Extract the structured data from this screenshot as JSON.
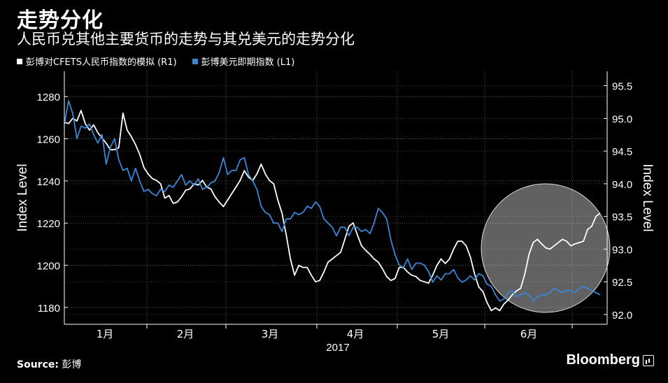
{
  "header": {
    "title": "走势分化",
    "subtitle": "人民币兑其他主要货币的走势与其兑美元的走势分化"
  },
  "legend": [
    {
      "label": "彭博对CFETS人民币指数的模拟 (R1)",
      "color": "#ffffff"
    },
    {
      "label": "彭博美元即期指数 (L1)",
      "color": "#3a86d4"
    }
  ],
  "footer": {
    "source_label": "Source:",
    "source_value": "彭博",
    "brand": "Bloomberg"
  },
  "chart_data": {
    "type": "line",
    "left_axis": {
      "label": "Index Level",
      "range": [
        1172,
        1292
      ],
      "ticks": [
        "1180",
        "1200",
        "1220",
        "1240",
        "1260",
        "1280"
      ]
    },
    "right_axis": {
      "label": "Index Level",
      "range": [
        91.85,
        95.72
      ],
      "ticks": [
        "92.0",
        "92.5",
        "93.0",
        "93.5",
        "94.0",
        "94.5",
        "95.0",
        "95.5"
      ]
    },
    "x_axis": {
      "year_label": "2017",
      "month_labels": [
        "1月",
        "2月",
        "3月",
        "4月",
        "5月",
        "6月"
      ]
    },
    "grid": true,
    "highlight": "circle around late May–June",
    "series": [
      {
        "name": "彭博对CFETS人民币指数的模拟 (R1)",
        "axis": "right",
        "color": "#ffffff",
        "x": [
          0,
          1,
          2,
          3,
          4,
          5,
          6,
          7,
          8,
          9,
          10,
          11,
          12,
          13,
          14,
          15,
          16,
          17,
          18,
          19,
          20,
          21,
          22,
          23,
          24,
          25,
          26,
          27,
          28,
          29,
          30,
          31,
          32,
          33,
          34,
          35,
          36,
          37,
          38,
          39,
          40,
          41,
          42,
          43,
          44,
          45,
          46,
          47,
          48,
          49,
          50,
          51,
          52,
          53,
          54,
          55,
          56,
          57,
          58,
          59,
          60,
          61,
          62,
          63,
          64,
          65,
          66,
          67,
          68,
          69,
          70,
          71,
          72,
          73,
          74,
          75,
          76,
          77,
          78,
          79,
          80,
          81,
          82,
          83,
          84,
          85,
          86,
          87,
          88,
          89,
          90,
          91,
          92,
          93,
          94,
          95,
          96,
          97,
          98,
          99,
          100,
          101,
          102,
          103,
          104,
          105,
          106,
          107,
          108,
          109,
          110,
          111,
          112,
          113,
          114,
          115,
          116,
          117,
          118,
          119,
          120,
          121,
          122,
          123,
          124,
          125,
          126,
          127,
          128
        ],
        "values": [
          94.94,
          94.92,
          95.0,
          94.96,
          95.12,
          94.92,
          94.82,
          94.9,
          94.78,
          94.7,
          94.62,
          94.52,
          94.52,
          94.55,
          95.08,
          94.82,
          94.72,
          94.6,
          94.45,
          94.25,
          94.15,
          94.08,
          94.05,
          94.0,
          93.78,
          93.82,
          93.7,
          93.72,
          93.8,
          93.9,
          93.92,
          94.0,
          93.98,
          94.05,
          93.95,
          93.92,
          93.8,
          93.72,
          93.65,
          93.75,
          93.85,
          93.95,
          94.05,
          94.2,
          94.1,
          94.05,
          94.15,
          94.3,
          94.15,
          94.05,
          94.0,
          93.75,
          93.55,
          93.22,
          92.85,
          92.6,
          92.75,
          92.72,
          92.72,
          92.6,
          92.5,
          92.52,
          92.65,
          92.8,
          92.85,
          92.9,
          92.95,
          93.15,
          93.35,
          93.4,
          93.22,
          93.05,
          92.98,
          92.92,
          92.85,
          92.8,
          92.7,
          92.58,
          92.52,
          92.55,
          92.72,
          92.72,
          92.65,
          92.6,
          92.58,
          92.52,
          92.5,
          92.48,
          92.6,
          92.75,
          92.85,
          92.78,
          92.85,
          93.0,
          93.12,
          93.12,
          93.05,
          92.88,
          92.62,
          92.42,
          92.35,
          92.18,
          92.06,
          92.1,
          92.06,
          92.16,
          92.22,
          92.3,
          92.36,
          92.4,
          92.62,
          92.92,
          93.1,
          93.15,
          93.08,
          93.02,
          93.0,
          93.05,
          93.1,
          93.15,
          93.12,
          93.05,
          93.08,
          93.1,
          93.12,
          93.3,
          93.35,
          93.5,
          93.55
        ]
      },
      {
        "name": "彭博美元即期指数 (L1)",
        "axis": "left",
        "color": "#3a86d4",
        "x": [
          0,
          1,
          2,
          3,
          4,
          5,
          6,
          7,
          8,
          9,
          10,
          11,
          12,
          13,
          14,
          15,
          16,
          17,
          18,
          19,
          20,
          21,
          22,
          23,
          24,
          25,
          26,
          27,
          28,
          29,
          30,
          31,
          32,
          33,
          34,
          35,
          36,
          37,
          38,
          39,
          40,
          41,
          42,
          43,
          44,
          45,
          46,
          47,
          48,
          49,
          50,
          51,
          52,
          53,
          54,
          55,
          56,
          57,
          58,
          59,
          60,
          61,
          62,
          63,
          64,
          65,
          66,
          67,
          68,
          69,
          70,
          71,
          72,
          73,
          74,
          75,
          76,
          77,
          78,
          79,
          80,
          81,
          82,
          83,
          84,
          85,
          86,
          87,
          88,
          89,
          90,
          91,
          92,
          93,
          94,
          95,
          96,
          97,
          98,
          99,
          100,
          101,
          102,
          103,
          104,
          105,
          106,
          107,
          108,
          109,
          110,
          111,
          112,
          113,
          114,
          115,
          116,
          117,
          118,
          119,
          120,
          121,
          122,
          123,
          124,
          125,
          126,
          127,
          128
        ],
        "values": [
          1267,
          1278,
          1272,
          1260,
          1266,
          1265,
          1267,
          1262,
          1258,
          1262,
          1248,
          1256,
          1260,
          1250,
          1245,
          1246,
          1240,
          1246,
          1240,
          1235,
          1236,
          1234,
          1233,
          1236,
          1235,
          1238,
          1237,
          1240,
          1243,
          1238,
          1240,
          1238,
          1241,
          1236,
          1237,
          1239,
          1240,
          1244,
          1251,
          1243,
          1245,
          1245,
          1250,
          1251,
          1243,
          1240,
          1236,
          1228,
          1225,
          1224,
          1220,
          1220,
          1216,
          1222,
          1222,
          1225,
          1224,
          1225,
          1228,
          1227,
          1230,
          1228,
          1222,
          1220,
          1218,
          1214,
          1218,
          1218,
          1214,
          1218,
          1218,
          1216,
          1217,
          1215,
          1220,
          1227,
          1225,
          1222,
          1212,
          1205,
          1200,
          1199,
          1203,
          1198,
          1201,
          1201,
          1200,
          1197,
          1192,
          1195,
          1193,
          1196,
          1196,
          1198,
          1194,
          1192,
          1193,
          1195,
          1193,
          1196,
          1195,
          1191,
          1190,
          1186,
          1183,
          1184,
          1187,
          1188,
          1185,
          1186,
          1187,
          1186,
          1183,
          1185,
          1186,
          1186,
          1187,
          1189,
          1188,
          1187,
          1188,
          1188,
          1187,
          1189,
          1190,
          1189,
          1188,
          1187,
          1186
        ]
      }
    ]
  }
}
